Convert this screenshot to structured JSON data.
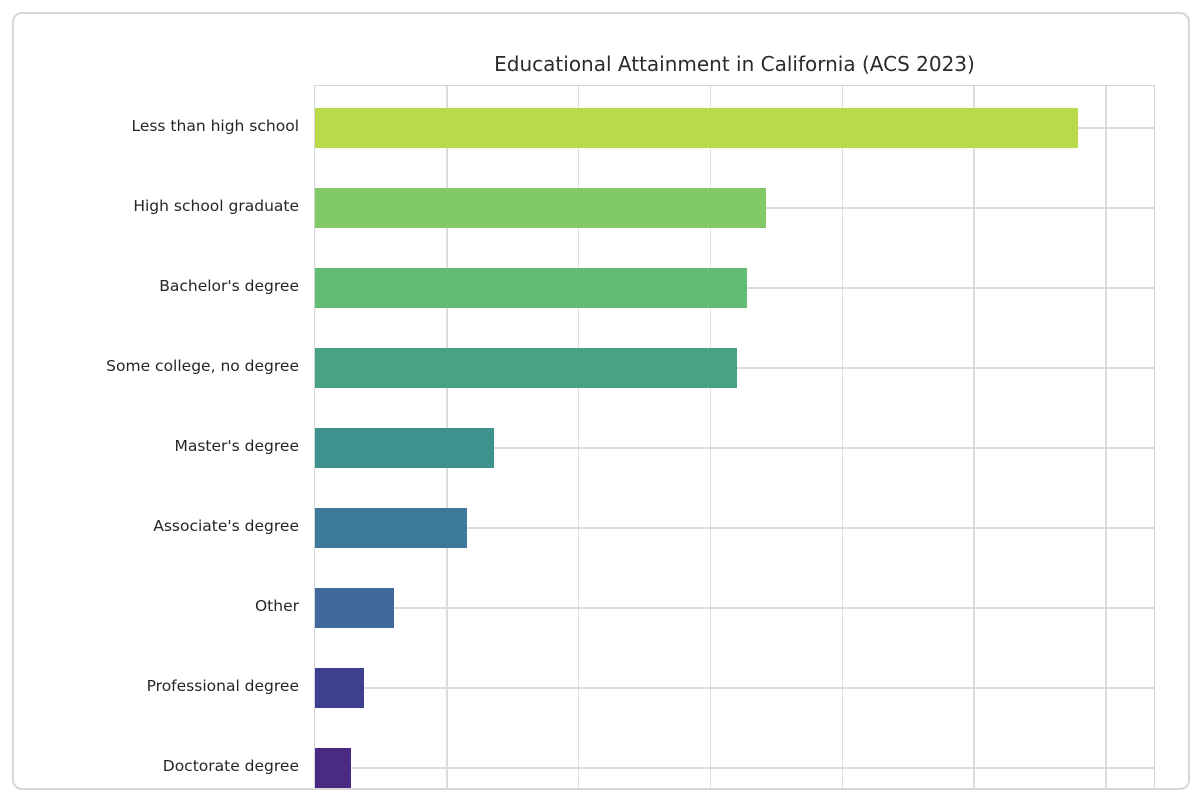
{
  "page": {
    "background_color": "#ffffff",
    "card_border_color": "#d7d7d7",
    "card_background_color": "#ffffff"
  },
  "chart_data": {
    "type": "bar",
    "orientation": "horizontal",
    "title": "Educational Attainment in California (ACS 2023)",
    "categories": [
      "Less than high school",
      "High school graduate",
      "Bachelor's degree",
      "Some college, no degree",
      "Master's degree",
      "Associate's degree",
      "Other",
      "Professional degree",
      "Doctorate degree"
    ],
    "values": [
      5.79,
      3.42,
      3.28,
      3.2,
      1.36,
      1.15,
      0.6,
      0.37,
      0.27
    ],
    "bar_colors": [
      "#b9da4a",
      "#82c967",
      "#62bc73",
      "#48a385",
      "#3e918d",
      "#3c7a9b",
      "#42699c",
      "#3f3f8f",
      "#4a2a82"
    ],
    "xlabel": "",
    "ylabel": "",
    "xlim": [
      0,
      6.38
    ],
    "x_gridline_interval": 1,
    "x_tick_labels_visible": false,
    "grid": true,
    "grid_color": "#dcdcdc",
    "spine_color": "#d4d4d4",
    "text_color": "#262626",
    "title_color": "#2b2b2b",
    "legend": "none"
  }
}
